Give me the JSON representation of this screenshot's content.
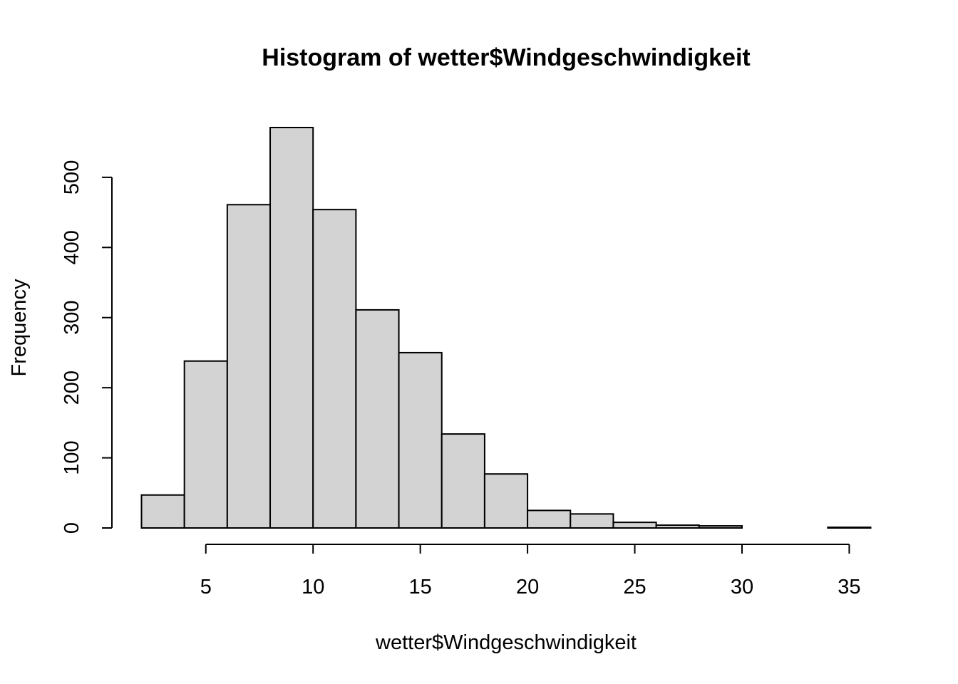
{
  "chart_data": {
    "type": "bar",
    "subtype": "histogram",
    "title": "Histogram of wetter$Windgeschwindigkeit",
    "xlabel": "wetter$Windgeschwindigkeit",
    "ylabel": "Frequency",
    "bins": [
      {
        "from": 2,
        "to": 4,
        "value": 47
      },
      {
        "from": 4,
        "to": 6,
        "value": 238
      },
      {
        "from": 6,
        "to": 8,
        "value": 461
      },
      {
        "from": 8,
        "to": 10,
        "value": 571
      },
      {
        "from": 10,
        "to": 12,
        "value": 454
      },
      {
        "from": 12,
        "to": 14,
        "value": 311
      },
      {
        "from": 14,
        "to": 16,
        "value": 250
      },
      {
        "from": 16,
        "to": 18,
        "value": 134
      },
      {
        "from": 18,
        "to": 20,
        "value": 77
      },
      {
        "from": 20,
        "to": 22,
        "value": 25
      },
      {
        "from": 22,
        "to": 24,
        "value": 20
      },
      {
        "from": 24,
        "to": 26,
        "value": 8
      },
      {
        "from": 26,
        "to": 28,
        "value": 4
      },
      {
        "from": 28,
        "to": 30,
        "value": 3
      },
      {
        "from": 30,
        "to": 32,
        "value": 0
      },
      {
        "from": 32,
        "to": 34,
        "value": 0
      },
      {
        "from": 34,
        "to": 36,
        "value": 1
      }
    ],
    "xticks": [
      5,
      10,
      15,
      20,
      25,
      30,
      35
    ],
    "yticks": [
      0,
      100,
      200,
      300,
      400,
      500
    ],
    "xlim": [
      2,
      36
    ],
    "ylim": [
      0,
      571
    ],
    "bar_color": "#d3d3d3",
    "border_color": "#000000",
    "grid": false,
    "legend": "none"
  }
}
